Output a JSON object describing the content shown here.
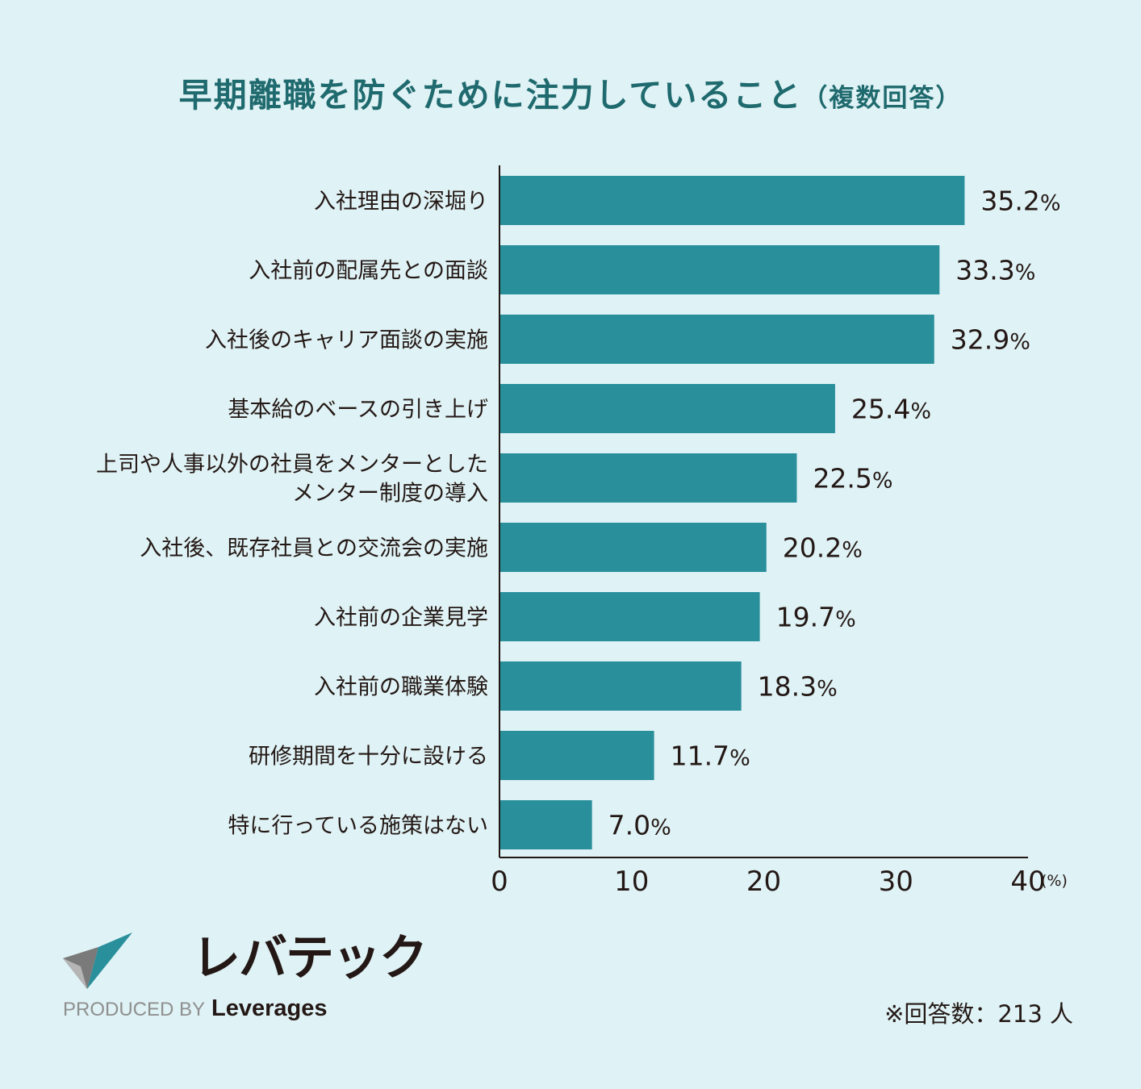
{
  "title": "早期離職を防ぐために注力していること",
  "subtitle": "（複数回答）",
  "chart_data": {
    "type": "bar",
    "orientation": "horizontal",
    "categories": [
      "入社理由の深堀り",
      "入社前の配属先との面談",
      "入社後のキャリア面談の実施",
      "基本給のベースの引き上げ",
      "上司や人事以外の社員をメンターとした\nメンター制度の導入",
      "入社後、既存社員との交流会の実施",
      "入社前の企業見学",
      "入社前の職業体験",
      "研修期間を十分に設ける",
      "特に行っている施策はない"
    ],
    "values": [
      35.2,
      33.3,
      32.9,
      25.4,
      22.5,
      20.2,
      19.7,
      18.3,
      11.7,
      7.0
    ],
    "value_labels": [
      "35.2",
      "33.3",
      "32.9",
      "25.4",
      "22.5",
      "20.2",
      "19.7",
      "18.3",
      "11.7",
      "7.0"
    ],
    "value_suffix": "%",
    "xlim": [
      0,
      40
    ],
    "xticks": [
      "0",
      "10",
      "20",
      "30",
      "40"
    ],
    "x_unit": "(%)",
    "bar_color": "#288f9b",
    "grid": false
  },
  "logo": {
    "brand": "レバテック",
    "produced_by": "PRODUCED BY",
    "company": "Leverages"
  },
  "note": "※回答数：213 人"
}
